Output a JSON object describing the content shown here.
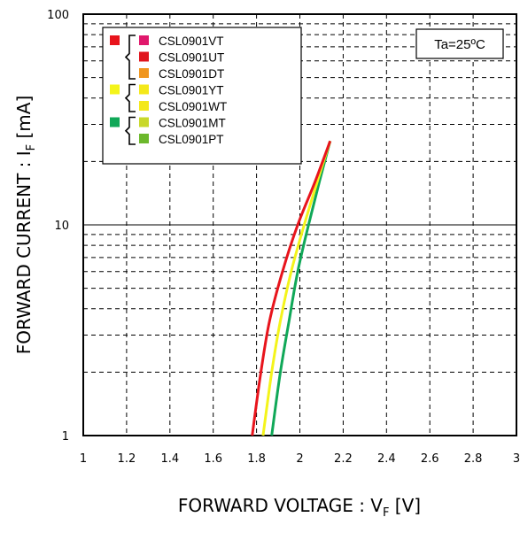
{
  "chart_data": {
    "type": "line",
    "title": "",
    "xlabel": "FORWARD VOLTAGE : V",
    "xlabel_sub": "F",
    "xlabel_unit": " [V]",
    "ylabel": "FORWARD CURRENT : I",
    "ylabel_sub": "F",
    "ylabel_unit": " [mA]",
    "xlim": [
      1,
      3
    ],
    "ylim": [
      1,
      100
    ],
    "yscale": "log",
    "grid": true,
    "x_ticks": [
      "1",
      "1.2",
      "1.4",
      "1.6",
      "1.8",
      "2",
      "2.2",
      "2.4",
      "2.6",
      "2.8",
      "3"
    ],
    "y_ticks": [
      "1",
      "10",
      "100"
    ],
    "annotation": "Ta=25ºC",
    "legend_position": "top-left",
    "legend": [
      {
        "label": "CSL0901VT",
        "color": "#e0186c",
        "group": 0
      },
      {
        "label": "CSL0901UT",
        "color": "#e0141c",
        "group": 0
      },
      {
        "label": "CSL0901DT",
        "color": "#f0961e",
        "group": 0
      },
      {
        "label": "CSL0901YT",
        "color": "#f4e81a",
        "group": 1
      },
      {
        "label": "CSL0901WT",
        "color": "#f4e81a",
        "group": 1
      },
      {
        "label": "CSL0901MT",
        "color": "#c8d82a",
        "group": 2
      },
      {
        "label": "CSL0901PT",
        "color": "#6cb82c",
        "group": 2
      }
    ],
    "group_colors": [
      "#e8141c",
      "#f4f41a",
      "#10a858"
    ],
    "series": [
      {
        "color": "#10a858",
        "x": [
          1.87,
          1.91,
          1.95,
          1.99,
          2.04,
          2.09,
          2.14
        ],
        "y": [
          1,
          2,
          3.5,
          6,
          10,
          16,
          25
        ]
      },
      {
        "color": "#f4f41a",
        "x": [
          1.83,
          1.87,
          1.91,
          1.96,
          2.02,
          2.08,
          2.14
        ],
        "y": [
          1,
          2,
          3.5,
          6,
          10,
          16,
          25
        ]
      },
      {
        "color": "#e8141c",
        "x": [
          1.78,
          1.82,
          1.86,
          1.92,
          1.99,
          2.07,
          2.14
        ],
        "y": [
          1,
          2,
          3.5,
          6,
          10,
          16,
          25
        ]
      }
    ]
  }
}
